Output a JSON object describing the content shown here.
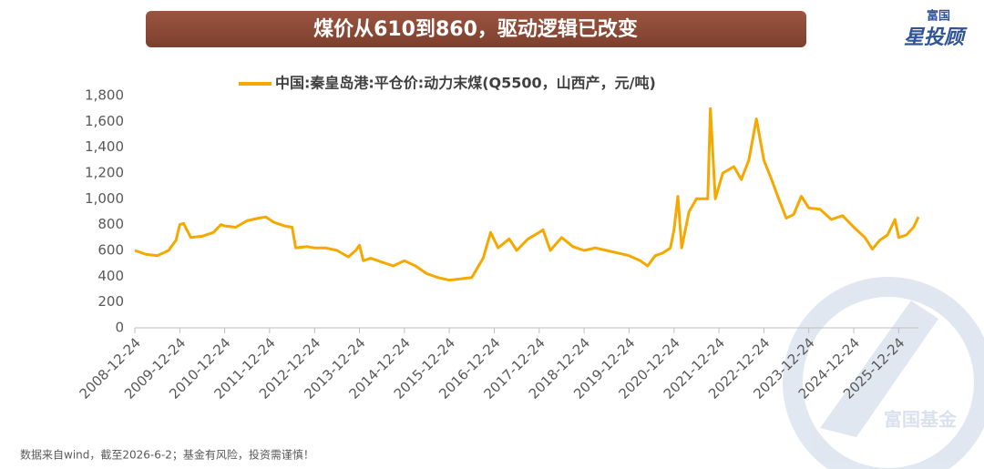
{
  "chart_data": {
    "type": "line",
    "title": "煤价从610到860，驱动逻辑已改变",
    "footnote": "数据来自wind，截至2026-6-2；基金有风险，投资需谨慎！",
    "logo": [
      "富国",
      "星投顾"
    ],
    "watermark": "富国基金",
    "x": [
      "2008-12-24",
      "2009-03-24",
      "2009-06-24",
      "2009-09-24",
      "2009-11-24",
      "2009-12-24",
      "2010-01-24",
      "2010-03-24",
      "2010-06-24",
      "2010-09-24",
      "2010-11-24",
      "2010-12-24",
      "2011-03-24",
      "2011-06-24",
      "2011-09-24",
      "2011-11-24",
      "2012-01-24",
      "2012-04-24",
      "2012-06-24",
      "2012-07-24",
      "2012-10-24",
      "2012-12-24",
      "2013-03-24",
      "2013-06-24",
      "2013-09-24",
      "2013-11-24",
      "2013-12-24",
      "2014-01-24",
      "2014-03-24",
      "2014-06-24",
      "2014-09-24",
      "2014-12-24",
      "2015-03-24",
      "2015-06-24",
      "2015-09-24",
      "2015-12-24",
      "2016-03-24",
      "2016-06-24",
      "2016-09-24",
      "2016-11-24",
      "2017-01-24",
      "2017-04-24",
      "2017-06-24",
      "2017-09-24",
      "2017-12-24",
      "2018-01-24",
      "2018-03-24",
      "2018-06-24",
      "2018-09-24",
      "2018-12-24",
      "2019-03-24",
      "2019-06-24",
      "2019-09-24",
      "2019-12-24",
      "2020-03-24",
      "2020-05-24",
      "2020-07-24",
      "2020-09-24",
      "2020-11-24",
      "2020-12-24",
      "2021-01-24",
      "2021-02-24",
      "2021-04-24",
      "2021-06-24",
      "2021-09-24",
      "2021-10-15",
      "2021-11-24",
      "2022-01-24",
      "2022-04-24",
      "2022-06-24",
      "2022-08-24",
      "2022-10-24",
      "2022-12-24",
      "2023-02-24",
      "2023-04-24",
      "2023-06-24",
      "2023-08-24",
      "2023-10-24",
      "2023-12-24",
      "2024-03-24",
      "2024-06-24",
      "2024-09-24",
      "2024-12-24",
      "2025-03-24",
      "2025-05-24",
      "2025-07-24",
      "2025-09-24",
      "2025-11-24",
      "2025-12-24",
      "2026-02-24",
      "2026-04-24",
      "2026-06-02"
    ],
    "series": [
      {
        "name": "中国:秦皇岛港:平仓价:动力末煤(Q5500，山西产，元/吨)",
        "color": "#f5a800",
        "values": [
          600,
          570,
          560,
          600,
          680,
          800,
          810,
          700,
          710,
          740,
          800,
          790,
          780,
          830,
          850,
          860,
          820,
          790,
          780,
          620,
          630,
          620,
          620,
          600,
          550,
          600,
          640,
          520,
          540,
          510,
          480,
          520,
          480,
          420,
          390,
          370,
          380,
          390,
          540,
          740,
          620,
          690,
          600,
          690,
          740,
          760,
          600,
          700,
          630,
          600,
          620,
          600,
          580,
          560,
          520,
          480,
          560,
          580,
          620,
          760,
          1020,
          620,
          900,
          1000,
          1000,
          1700,
          1000,
          1200,
          1250,
          1150,
          1300,
          1620,
          1300,
          1150,
          1000,
          850,
          880,
          1020,
          930,
          920,
          840,
          870,
          780,
          700,
          610,
          680,
          720,
          840,
          700,
          720,
          780,
          860
        ]
      }
    ],
    "xlim": [
      "2008-12-24",
      "2026-06-02"
    ],
    "xticks": [
      "2008-12-24",
      "2009-12-24",
      "2010-12-24",
      "2011-12-24",
      "2012-12-24",
      "2013-12-24",
      "2014-12-24",
      "2015-12-24",
      "2016-12-24",
      "2017-12-24",
      "2018-12-24",
      "2019-12-24",
      "2020-12-24",
      "2021-12-24",
      "2022-12-24",
      "2023-12-24",
      "2024-12-24",
      "2025-12-24"
    ],
    "ylim": [
      0,
      1800
    ],
    "yticks": [
      0,
      200,
      400,
      600,
      800,
      {
        "value": 1000,
        "label": "1,000"
      },
      {
        "value": 1200,
        "label": "1,200"
      },
      {
        "value": 1400,
        "label": "1,400"
      },
      {
        "value": 1600,
        "label": "1,600"
      },
      {
        "value": 1800,
        "label": "1,800"
      }
    ],
    "grid": false
  }
}
